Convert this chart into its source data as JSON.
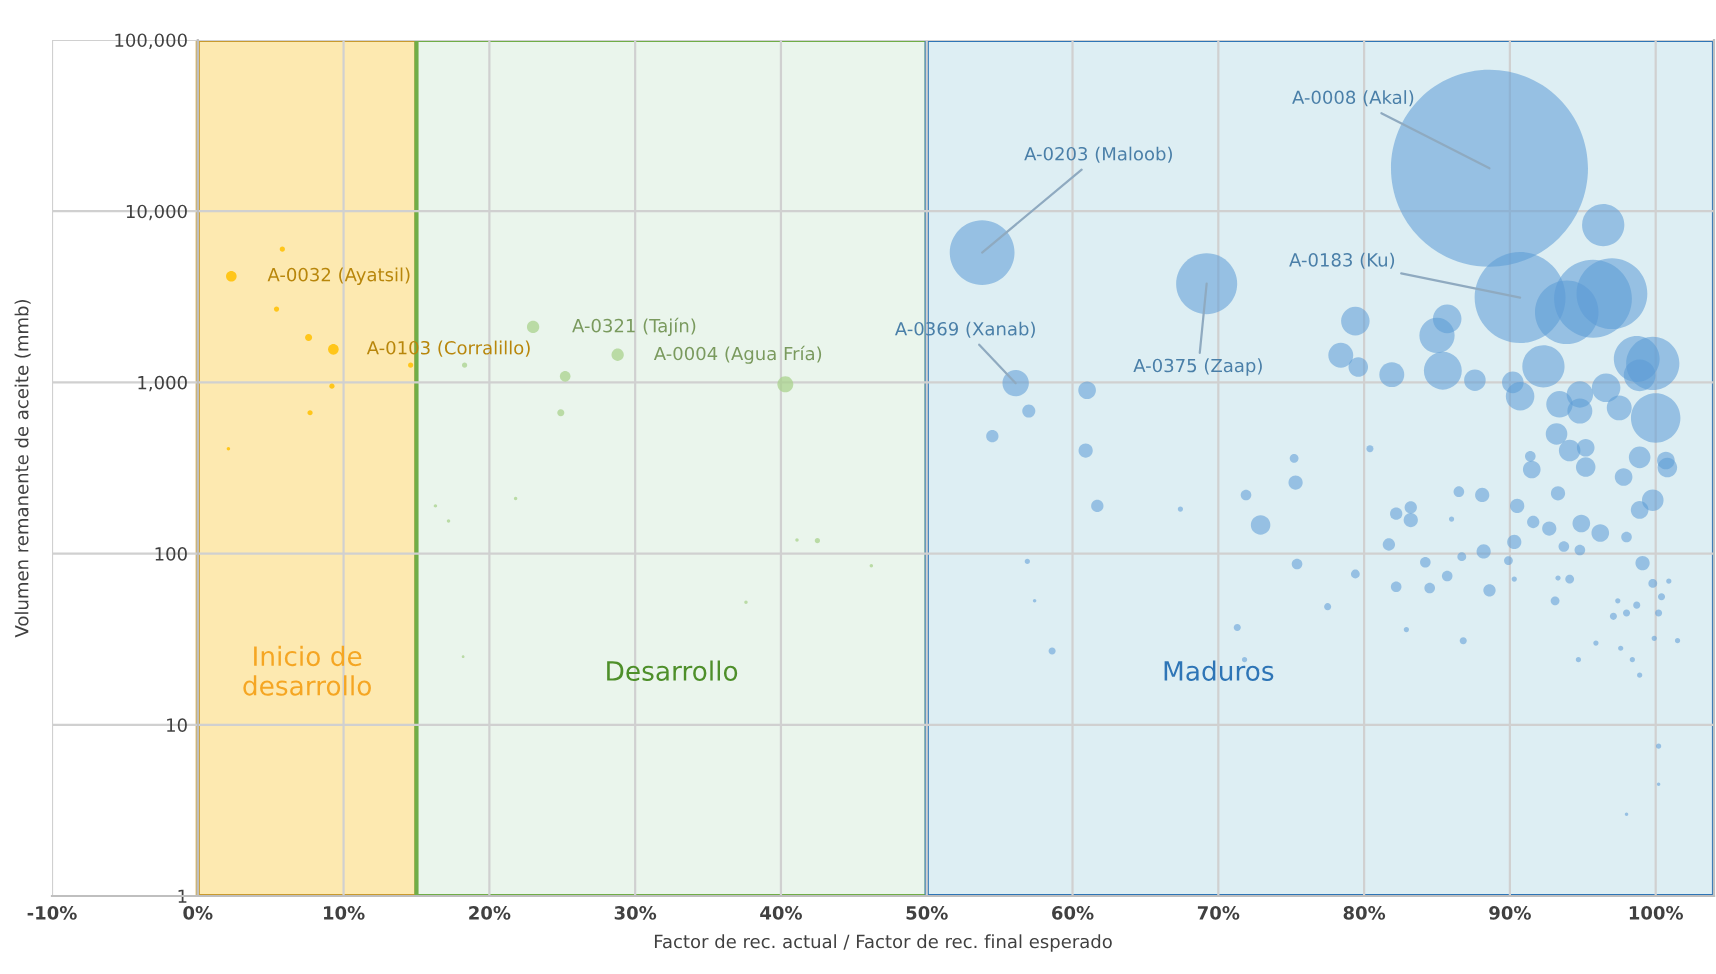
{
  "chart_data": {
    "type": "bubble",
    "xlabel": "Factor de rec. actual / Factor de rec. final esperado",
    "ylabel": "Volumen remanente de aceite (mmb)",
    "xlim": [
      -10,
      104
    ],
    "xticks": [
      {
        "value": -10,
        "label": "-10%"
      },
      {
        "value": 0,
        "label": "0%"
      },
      {
        "value": 10,
        "label": "10%"
      },
      {
        "value": 20,
        "label": "20%"
      },
      {
        "value": 30,
        "label": "30%"
      },
      {
        "value": 40,
        "label": "40%"
      },
      {
        "value": 50,
        "label": "50%"
      },
      {
        "value": 60,
        "label": "60%"
      },
      {
        "value": 70,
        "label": "70%"
      },
      {
        "value": 80,
        "label": "80%"
      },
      {
        "value": 90,
        "label": "90%"
      },
      {
        "value": 100,
        "label": "100%"
      }
    ],
    "log": "y",
    "ylim": [
      1,
      100000
    ],
    "yticks": [
      1,
      10,
      100,
      {
        "value": 1000,
        "label": "1,000"
      },
      {
        "value": 10000,
        "label": "10,000"
      },
      {
        "value": 100000,
        "label": "100,000"
      }
    ],
    "grid": true,
    "bands": [
      {
        "axis": "x",
        "from": 0,
        "to": 15,
        "label": "Inicio de\ndesarrollo",
        "color": "#fde9b0"
      },
      {
        "axis": "x",
        "from": 15,
        "to": 50,
        "label": "Desarrollo",
        "color": "#eaf5ec"
      },
      {
        "axis": "x",
        "from": 50,
        "to": 104,
        "label": "Maduros",
        "color": "#ddeef3"
      }
    ],
    "series": [
      {
        "color": "#ffc000",
        "x": [
          2.3,
          9.3,
          5.8,
          5.4,
          7.6,
          9.2,
          7.7,
          14.6,
          2.1
        ],
        "values": [
          4170,
          1560,
          6000,
          2680,
          1830,
          950,
          665,
          1260,
          410
        ],
        "sizes": [
          0.0029,
          0.0029,
          0.0007,
          0.0007,
          0.0013,
          0.0007,
          0.0007,
          0.0007,
          0.0003
        ]
      },
      {
        "color": "#a9d18e",
        "x": [
          23.0,
          28.8,
          25.2,
          24.9,
          40.3,
          18.3,
          16.3,
          17.2,
          21.8,
          42.5,
          41.1,
          46.2,
          37.6,
          18.2
        ],
        "values": [
          2110,
          1450,
          1085,
          665,
          975,
          1260,
          190,
          155,
          210,
          119,
          120,
          85,
          52,
          25
        ],
        "sizes": [
          0.0039,
          0.0039,
          0.0029,
          0.0013,
          0.0065,
          0.0007,
          0.0003,
          0.0003,
          0.0003,
          0.0007,
          0.0003,
          0.0003,
          0.0003,
          0.0002
        ]
      },
      {
        "color": "#5b9bd5",
        "x": [
          88.6,
          53.8,
          69.2,
          90.7,
          56.1,
          96.4,
          95.7,
          93.9,
          97.0,
          99.8,
          98.7,
          100.0,
          92.3,
          79.4,
          85.0,
          85.7,
          85.4,
          78.4,
          79.6,
          81.9,
          87.6,
          90.2,
          90.7,
          93.4,
          94.8,
          94.8,
          96.6,
          97.5,
          98.9,
          93.2,
          94.1,
          95.2,
          98.9,
          100.7,
          91.4,
          57.0,
          61.0,
          54.5,
          60.9,
          75.2,
          80.4,
          61.7,
          67.4,
          71.9,
          72.9,
          75.3,
          75.4,
          79.4,
          77.5,
          81.7,
          82.2,
          83.2,
          83.2,
          82.2,
          84.2,
          84.5,
          85.7,
          86.5,
          88.1,
          86.7,
          88.2,
          88.6,
          90.5,
          90.3,
          89.9,
          91.6,
          92.7,
          93.7,
          94.8,
          93.1,
          94.1,
          93.3,
          94.9,
          96.2,
          91.5,
          95.2,
          97.8,
          98.9,
          99.8,
          100.8,
          98.0,
          99.1,
          99.8,
          100.4,
          100.2,
          98.7,
          98.0,
          97.1,
          95.9,
          94.7,
          97.6,
          98.4,
          98.9,
          99.9,
          101.5,
          100.9,
          100.2,
          98.0,
          100.2,
          56.9,
          57.4,
          58.6,
          71.3,
          71.8,
          72.7,
          82.9,
          86.8,
          90.3,
          93.3,
          86.0,
          97.4
        ],
        "values": [
          17800,
          5730,
          3770,
          3130,
          990,
          8300,
          3080,
          2570,
          3300,
          1290,
          1370,
          620,
          1240,
          2280,
          1880,
          2350,
          1170,
          1440,
          1230,
          1110,
          1030,
          1000,
          830,
          745,
          850,
          680,
          930,
          710,
          1100,
          500,
          400,
          415,
          365,
          350,
          370,
          680,
          900,
          485,
          400,
          360,
          410,
          190,
          182,
          220,
          147,
          260,
          87,
          76,
          49,
          113,
          171,
          186,
          157,
          64,
          89,
          63,
          74,
          230,
          220,
          96,
          103,
          61,
          190,
          117,
          91,
          153,
          140,
          110,
          105,
          53,
          71,
          225,
          150,
          132,
          310,
          320,
          280,
          180,
          205,
          318,
          125,
          88,
          67,
          56,
          45,
          50,
          45,
          43,
          30,
          24,
          28,
          24,
          19.5,
          32,
          31,
          69,
          7.5,
          3,
          4.5,
          90,
          53,
          27,
          37,
          24,
          21,
          36,
          31,
          71,
          72,
          159,
          53
        ],
        "sizes": [
          1,
          0.108,
          0.096,
          0.213,
          0.018,
          0.046,
          0.156,
          0.104,
          0.129,
          0.073,
          0.054,
          0.063,
          0.046,
          0.021,
          0.032,
          0.021,
          0.037,
          0.016,
          0.0098,
          0.016,
          0.012,
          0.012,
          0.021,
          0.018,
          0.018,
          0.016,
          0.021,
          0.016,
          0.026,
          0.012,
          0.012,
          0.008,
          0.012,
          0.008,
          0.0029,
          0.0044,
          0.008,
          0.0039,
          0.0052,
          0.002,
          0.0013,
          0.0039,
          0.0007,
          0.0029,
          0.0098,
          0.0052,
          0.0029,
          0.002,
          0.0013,
          0.0039,
          0.0039,
          0.0039,
          0.0052,
          0.0029,
          0.0029,
          0.0029,
          0.0029,
          0.0029,
          0.0052,
          0.002,
          0.0052,
          0.0039,
          0.0052,
          0.0052,
          0.002,
          0.0039,
          0.0052,
          0.0029,
          0.0029,
          0.002,
          0.002,
          0.0052,
          0.008,
          0.008,
          0.008,
          0.0098,
          0.008,
          0.008,
          0.012,
          0.0098,
          0.0029,
          0.0052,
          0.002,
          0.0013,
          0.0013,
          0.0013,
          0.0013,
          0.0013,
          0.0007,
          0.0007,
          0.0007,
          0.0007,
          0.0007,
          0.0007,
          0.0007,
          0.0007,
          0.0007,
          0.0003,
          0.0003,
          0.0007,
          0.0003,
          0.0013,
          0.0013,
          0.0007,
          0.0003,
          0.0007,
          0.0013,
          0.0007,
          0.0007,
          0.0007,
          0.0007
        ]
      }
    ],
    "annotations": [
      {
        "text": "A-0008 (Akal)",
        "x": 88.6,
        "y": 17800
      },
      {
        "text": "A-0203 (Maloob)",
        "x": 53.8,
        "y": 5730
      },
      {
        "text": "A-0375 (Zaap)",
        "x": 69.2,
        "y": 3770
      },
      {
        "text": "A-0183 (Ku)",
        "x": 90.7,
        "y": 3130
      },
      {
        "text": "A-0369 (Xanab)",
        "x": 56.1,
        "y": 990
      },
      {
        "text": "A-0032 (Ayatsil)",
        "x": 2.3,
        "y": 4170
      },
      {
        "text": "A-0103 (Corralillo)",
        "x": 9.3,
        "y": 1560
      },
      {
        "text": "A-0321 (Tajín)",
        "x": 23.0,
        "y": 2110
      },
      {
        "text": "A-0004 (Agua Fría)",
        "x": 28.8,
        "y": 1450
      }
    ]
  }
}
